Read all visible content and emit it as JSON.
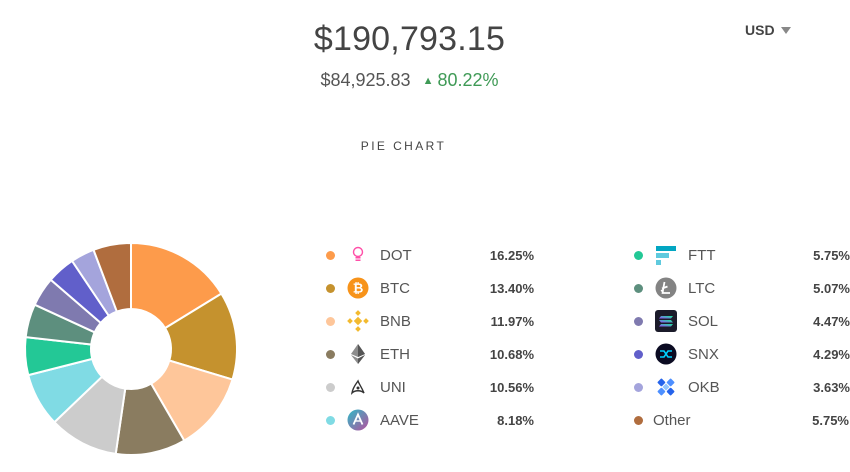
{
  "portfolio": {
    "total": "$190,793.15",
    "base": "$84,925.83",
    "change": "80.22%",
    "change_color": "#3f9a56"
  },
  "currency_selector": {
    "value": "USD"
  },
  "chart_title": "PIE CHART",
  "chart_data": {
    "type": "pie",
    "donut": true,
    "legend": "right",
    "categories": [
      "DOT",
      "BTC",
      "BNB",
      "ETH",
      "UNI",
      "AAVE",
      "FTT",
      "LTC",
      "SOL",
      "SNX",
      "OKB",
      "Other"
    ],
    "values": [
      16.25,
      13.4,
      11.97,
      10.68,
      10.56,
      8.18,
      5.75,
      5.07,
      4.47,
      4.29,
      3.63,
      5.75
    ],
    "colors": [
      "#fd9b4b",
      "#c5922e",
      "#fec69a",
      "#8a7c60",
      "#cccccc",
      "#80dbe4",
      "#23c896",
      "#5d8f7e",
      "#7f7aaf",
      "#615fca",
      "#a4a4dc",
      "#b06d3e"
    ]
  },
  "legend": [
    {
      "symbol": "DOT",
      "percent": "16.25%",
      "color": "#fd9b4b",
      "icon": "dot-icon"
    },
    {
      "symbol": "BTC",
      "percent": "13.40%",
      "color": "#c5922e",
      "icon": "btc-icon"
    },
    {
      "symbol": "BNB",
      "percent": "11.97%",
      "color": "#fec69a",
      "icon": "bnb-icon"
    },
    {
      "symbol": "ETH",
      "percent": "10.68%",
      "color": "#8a7c60",
      "icon": "eth-icon"
    },
    {
      "symbol": "UNI",
      "percent": "10.56%",
      "color": "#cccccc",
      "icon": "uni-icon"
    },
    {
      "symbol": "AAVE",
      "percent": "8.18%",
      "color": "#80dbe4",
      "icon": "aave-icon"
    },
    {
      "symbol": "FTT",
      "percent": "5.75%",
      "color": "#23c896",
      "icon": "ftt-icon"
    },
    {
      "symbol": "LTC",
      "percent": "5.07%",
      "color": "#5d8f7e",
      "icon": "ltc-icon"
    },
    {
      "symbol": "SOL",
      "percent": "4.47%",
      "color": "#7f7aaf",
      "icon": "sol-icon"
    },
    {
      "symbol": "SNX",
      "percent": "4.29%",
      "color": "#615fca",
      "icon": "snx-icon"
    },
    {
      "symbol": "OKB",
      "percent": "3.63%",
      "color": "#a4a4dc",
      "icon": "okb-icon"
    },
    {
      "symbol": "Other",
      "percent": "5.75%",
      "color": "#b06d3e",
      "icon": ""
    }
  ]
}
